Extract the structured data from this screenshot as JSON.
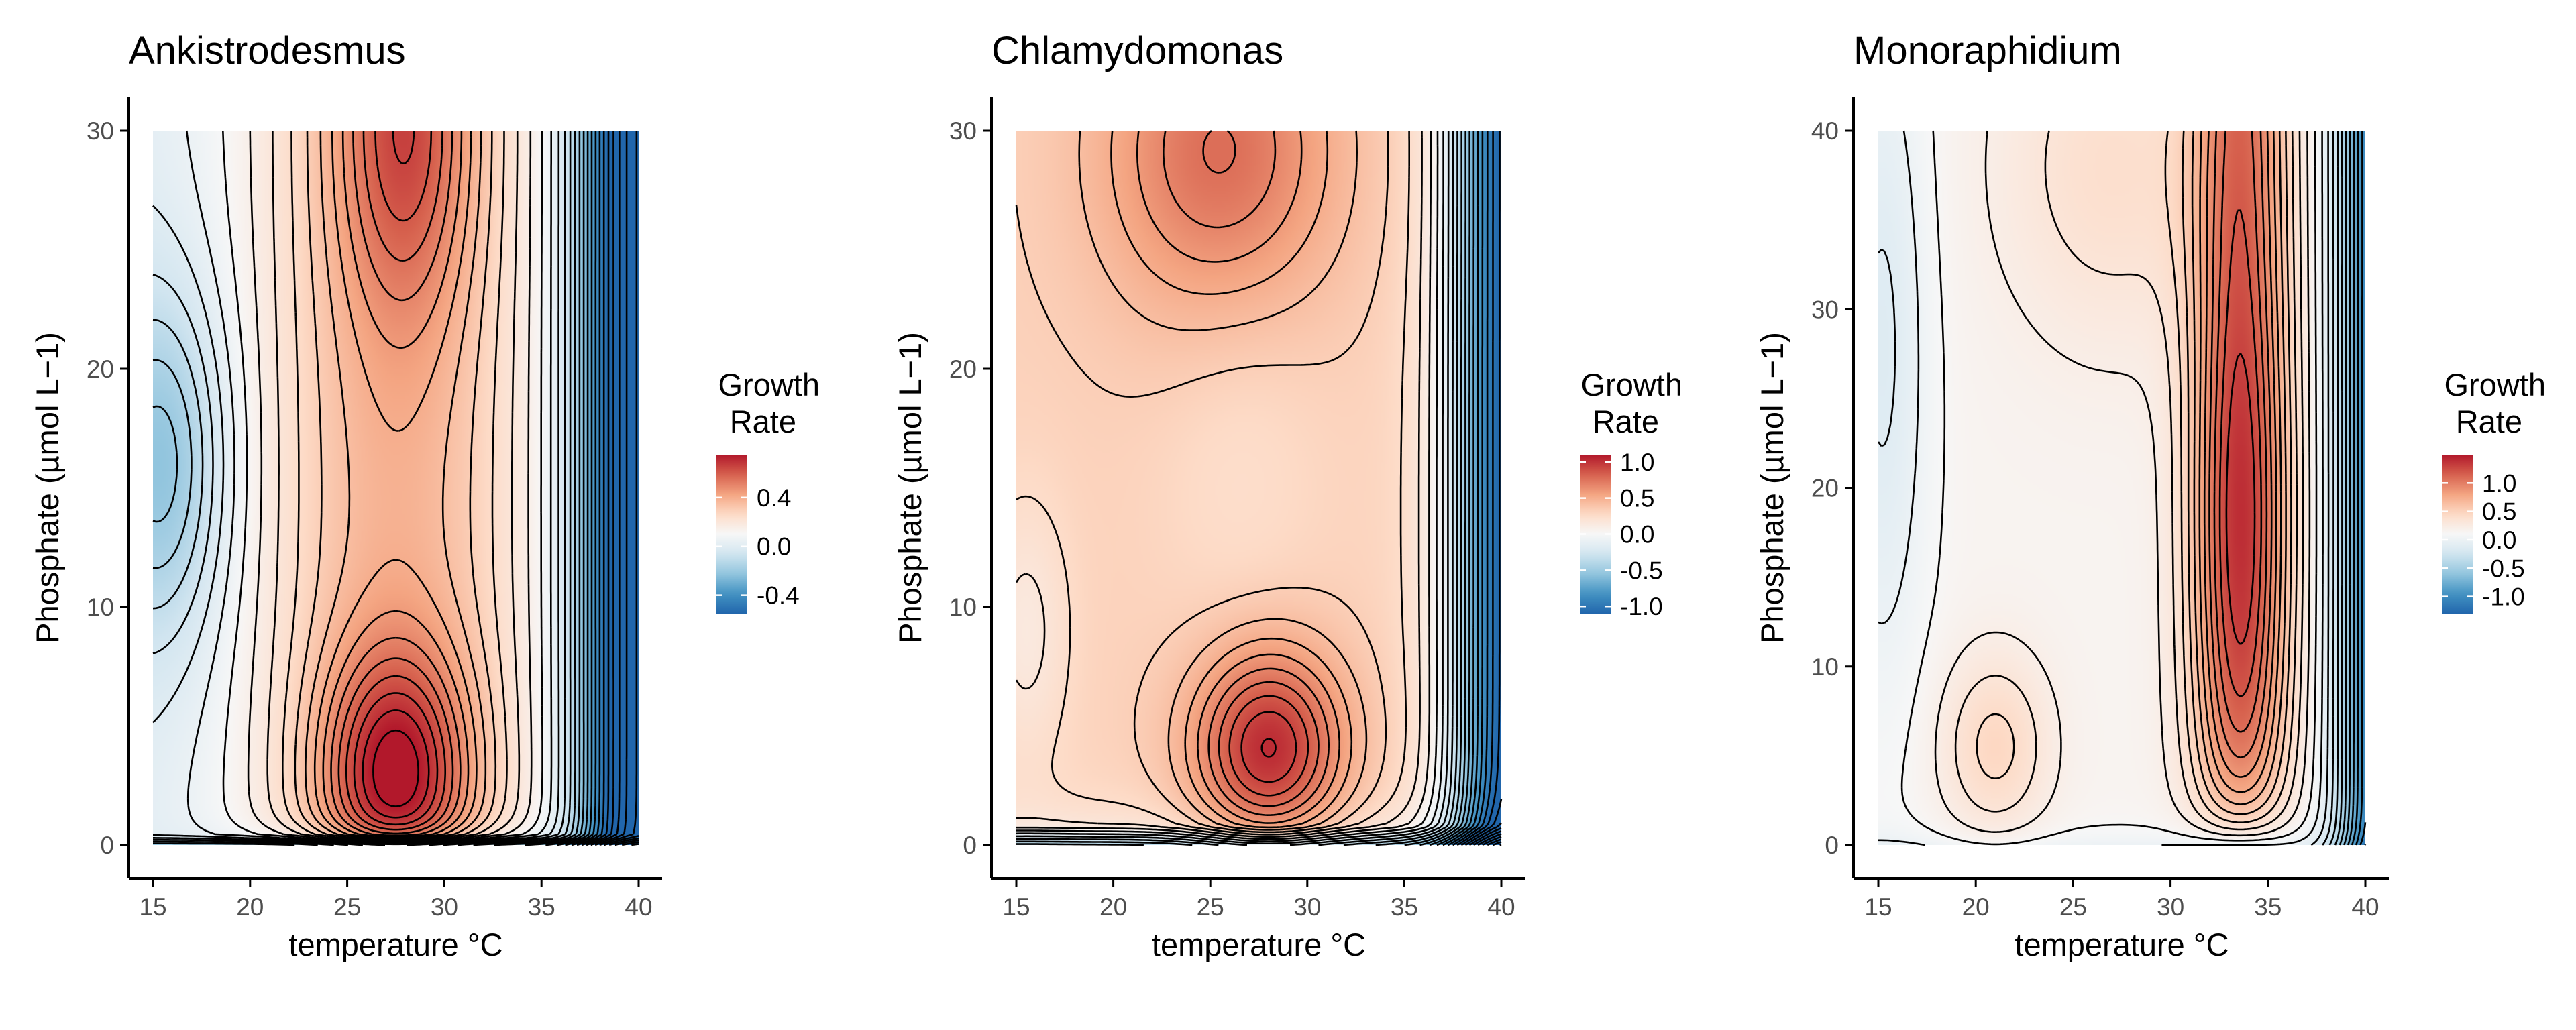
{
  "chart_data": [
    {
      "type": "heatmap",
      "title": "Ankistrodesmus",
      "xlabel": "temperature °C",
      "ylabel": "Phosphate (µmol L−1)",
      "xlim": [
        15,
        40
      ],
      "ylim": [
        0,
        30
      ],
      "x_ticks": [
        15,
        20,
        25,
        30,
        35,
        40
      ],
      "y_ticks": [
        0,
        10,
        20,
        30
      ],
      "x_tick_labels": [
        "15",
        "20",
        "25",
        "30",
        "35",
        "40"
      ],
      "y_tick_labels": [
        "0",
        "10",
        "20",
        "30"
      ],
      "legend": {
        "title_line1": "Growth",
        "title_line2": "Rate",
        "range": [
          -0.55,
          0.75
        ],
        "ticks": [
          -0.4,
          0.0,
          0.4
        ],
        "tick_labels": [
          "-0.4",
          "0.0",
          "0.4"
        ],
        "position": "right"
      },
      "contours": "black",
      "surface_peaks": [
        {
          "temperature": 27.5,
          "phosphate": 1.8,
          "growth_rate": 0.74
        },
        {
          "temperature": 28.0,
          "phosphate": 29.5,
          "growth_rate": 0.55
        },
        {
          "temperature": 15.0,
          "phosphate": 15.5,
          "growth_rate": -0.08
        }
      ]
    },
    {
      "type": "heatmap",
      "title": "Chlamydomonas",
      "xlabel": "temperature °C",
      "ylabel": "Phosphate (µmol L−1)",
      "xlim": [
        15,
        40
      ],
      "ylim": [
        0,
        30
      ],
      "x_ticks": [
        15,
        20,
        25,
        30,
        35,
        40
      ],
      "y_ticks": [
        0,
        10,
        20,
        30
      ],
      "x_tick_labels": [
        "15",
        "20",
        "25",
        "30",
        "35",
        "40"
      ],
      "y_tick_labels": [
        "0",
        "10",
        "20",
        "30"
      ],
      "legend": {
        "title_line1": "Growth",
        "title_line2": "Rate",
        "range": [
          -1.1,
          1.1
        ],
        "ticks": [
          -1.0,
          -0.5,
          0.0,
          0.5,
          1.0
        ],
        "tick_labels": [
          "-1.0",
          "-0.5",
          "0.0",
          "0.5",
          "1.0"
        ],
        "position": "right"
      },
      "contours": "black",
      "surface_peaks": [
        {
          "temperature": 28.0,
          "phosphate": 4.0,
          "growth_rate": 1.05
        },
        {
          "temperature": 25.5,
          "phosphate": 29.5,
          "growth_rate": 0.75
        }
      ]
    },
    {
      "type": "heatmap",
      "title": "Monoraphidium",
      "xlabel": "temperature °C",
      "ylabel": "Phosphate (µmol L−1)",
      "xlim": [
        15,
        40
      ],
      "ylim": [
        0,
        40
      ],
      "x_ticks": [
        15,
        20,
        25,
        30,
        35,
        40
      ],
      "y_ticks": [
        0,
        10,
        20,
        30,
        40
      ],
      "x_tick_labels": [
        "15",
        "20",
        "25",
        "30",
        "35",
        "40"
      ],
      "y_tick_labels": [
        "0",
        "10",
        "20",
        "30",
        "40"
      ],
      "legend": {
        "title_line1": "Growth",
        "title_line2": "Rate",
        "range": [
          -1.3,
          1.5
        ],
        "ticks": [
          -1.0,
          -0.5,
          0.0,
          0.5,
          1.0
        ],
        "tick_labels": [
          "-1.0",
          "-0.5",
          "0.0",
          "0.5",
          "1.0"
        ],
        "position": "right"
      },
      "contours": "black",
      "surface_peaks": [
        {
          "temperature": 33.5,
          "phosphate": 18.0,
          "growth_rate": 1.4
        },
        {
          "temperature": 21.0,
          "phosphate": 5.5,
          "growth_rate": 0.45
        }
      ]
    }
  ],
  "colors": {
    "low": "#2166ac",
    "mid": "#f7f7f7",
    "high": "#b2182b",
    "axis": "#000000",
    "tick_label": "#4d4d4d"
  }
}
